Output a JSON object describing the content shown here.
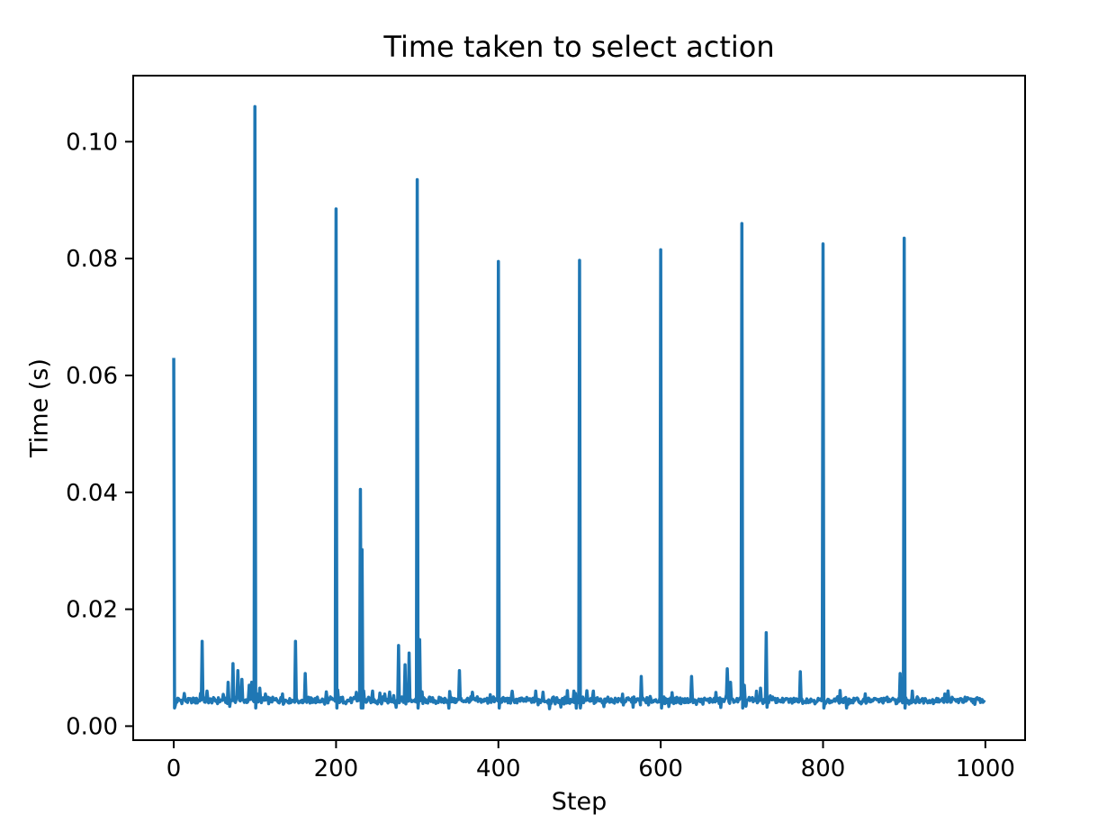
{
  "chart_data": {
    "type": "line",
    "title": "Time taken to select action",
    "xlabel": "Step",
    "ylabel": "Time (s)",
    "grid": false,
    "legend": null,
    "line_color": "#1f77b4",
    "axis_color": "#000000",
    "background_color": "#ffffff",
    "n_points": 1000,
    "xlim": [
      -49.95,
      1048.95
    ],
    "ylim": [
      -0.0024,
      0.1113
    ],
    "x_ticks": [
      {
        "value": 0,
        "label": "0"
      },
      {
        "value": 200,
        "label": "200"
      },
      {
        "value": 400,
        "label": "400"
      },
      {
        "value": 600,
        "label": "600"
      },
      {
        "value": 800,
        "label": "800"
      },
      {
        "value": 1000,
        "label": "1000"
      }
    ],
    "y_ticks": [
      {
        "value": 0.0,
        "label": "0.00"
      },
      {
        "value": 0.02,
        "label": "0.02"
      },
      {
        "value": 0.04,
        "label": "0.04"
      },
      {
        "value": 0.06,
        "label": "0.06"
      },
      {
        "value": 0.08,
        "label": "0.08"
      },
      {
        "value": 0.1,
        "label": "0.10"
      }
    ],
    "baseline": {
      "mean": 0.0044,
      "noise_amplitude": 0.0007
    },
    "post_spike_dip": {
      "min_spike_value": 0.03,
      "dip_value": 0.0031
    },
    "spikes": [
      {
        "step": 0,
        "value": 0.063
      },
      {
        "step": 35,
        "value": 0.0145
      },
      {
        "step": 41,
        "value": 0.006
      },
      {
        "step": 67,
        "value": 0.0075
      },
      {
        "step": 73,
        "value": 0.0107
      },
      {
        "step": 79,
        "value": 0.0095,
        "wide": true
      },
      {
        "step": 84,
        "value": 0.008
      },
      {
        "step": 93,
        "value": 0.007
      },
      {
        "step": 96,
        "value": 0.0075
      },
      {
        "step": 100,
        "value": 0.106
      },
      {
        "step": 106,
        "value": 0.0065
      },
      {
        "step": 113,
        "value": 0.0055
      },
      {
        "step": 150,
        "value": 0.0145
      },
      {
        "step": 162,
        "value": 0.009
      },
      {
        "step": 200,
        "value": 0.0885
      },
      {
        "step": 230,
        "value": 0.0405
      },
      {
        "step": 232,
        "value": 0.0302
      },
      {
        "step": 245,
        "value": 0.006
      },
      {
        "step": 260,
        "value": 0.0055
      },
      {
        "step": 277,
        "value": 0.0138
      },
      {
        "step": 285,
        "value": 0.0105
      },
      {
        "step": 290,
        "value": 0.0125
      },
      {
        "step": 300,
        "value": 0.0935
      },
      {
        "step": 303,
        "value": 0.0148
      },
      {
        "step": 352,
        "value": 0.0095
      },
      {
        "step": 400,
        "value": 0.0795
      },
      {
        "step": 446,
        "value": 0.006
      },
      {
        "step": 455,
        "value": 0.0058
      },
      {
        "step": 500,
        "value": 0.0797
      },
      {
        "step": 517,
        "value": 0.006
      },
      {
        "step": 576,
        "value": 0.0085
      },
      {
        "step": 600,
        "value": 0.0815
      },
      {
        "step": 638,
        "value": 0.0085
      },
      {
        "step": 682,
        "value": 0.0098,
        "wide": true
      },
      {
        "step": 686,
        "value": 0.0075
      },
      {
        "step": 700,
        "value": 0.086
      },
      {
        "step": 703,
        "value": 0.007
      },
      {
        "step": 723,
        "value": 0.0065
      },
      {
        "step": 730,
        "value": 0.016
      },
      {
        "step": 772,
        "value": 0.0093
      },
      {
        "step": 800,
        "value": 0.0825
      },
      {
        "step": 895,
        "value": 0.009
      },
      {
        "step": 900,
        "value": 0.0835
      },
      {
        "step": 910,
        "value": 0.006
      },
      {
        "step": 950,
        "value": 0.0055
      }
    ]
  }
}
